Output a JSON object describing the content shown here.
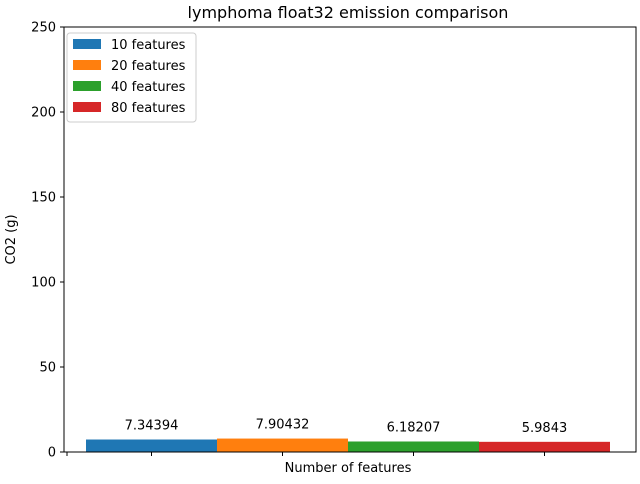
{
  "chart_data": {
    "type": "bar",
    "title": "lymphoma float32 emission comparison",
    "xlabel": "Number of features",
    "ylabel": "CO2 (g)",
    "ylim": [
      0,
      250
    ],
    "yticks": [
      0,
      50,
      100,
      150,
      200,
      250
    ],
    "grid": false,
    "legend_position": "upper-left",
    "series": [
      {
        "name": "10 features",
        "value": 7.34394,
        "label": "7.34394",
        "color": "#1f77b4"
      },
      {
        "name": "20 features",
        "value": 7.90432,
        "label": "7.90432",
        "color": "#ff7f0e"
      },
      {
        "name": "40 features",
        "value": 6.18207,
        "label": "6.18207",
        "color": "#2ca02c"
      },
      {
        "name": "80 features",
        "value": 5.9843,
        "label": "5.9843",
        "color": "#d62728"
      }
    ]
  }
}
